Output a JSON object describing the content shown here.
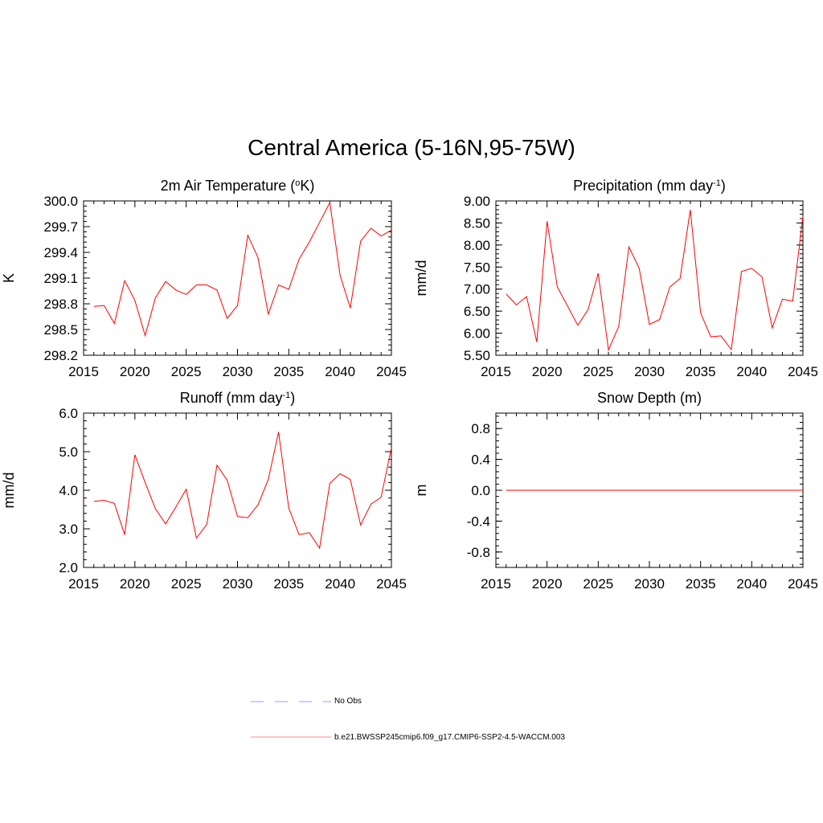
{
  "title": "Central America (5-16N,95-75W)",
  "colors": {
    "model": "#ff0000",
    "obs": "#9999ff",
    "axis": "#000000"
  },
  "legend": {
    "obs_label": "No Obs",
    "model_label": "b.e21.BWSSP245cmip6.f09_g17.CMIP6-SSP2-4.5-WACCM.003"
  },
  "chart_data": [
    {
      "id": "temperature",
      "type": "line",
      "title": "2m Air Temperature (",
      "title_sup": "o",
      "title_after": "K)",
      "ylabel": "K",
      "xlim": [
        2015,
        2045
      ],
      "ylim": [
        298.2,
        300.0
      ],
      "xticks": [
        "2015",
        "2020",
        "2025",
        "2030",
        "2035",
        "2040",
        "2045"
      ],
      "yticks": [
        "298.2",
        "298.5",
        "298.8",
        "299.1",
        "299.4",
        "299.7",
        "300.0"
      ],
      "x": [
        2016,
        2017,
        2018,
        2019,
        2020,
        2021,
        2022,
        2023,
        2024,
        2025,
        2026,
        2027,
        2028,
        2029,
        2030,
        2031,
        2032,
        2033,
        2034,
        2035,
        2036,
        2037,
        2038,
        2039,
        2040,
        2041,
        2042,
        2043,
        2044,
        2045
      ],
      "values": [
        298.77,
        298.78,
        298.57,
        299.07,
        298.84,
        298.43,
        298.87,
        299.06,
        298.96,
        298.91,
        299.02,
        299.02,
        298.96,
        298.63,
        298.78,
        299.6,
        299.34,
        298.68,
        299.02,
        298.97,
        299.32,
        299.52,
        299.75,
        299.98,
        299.13,
        298.75,
        299.53,
        299.68,
        299.59,
        299.66
      ]
    },
    {
      "id": "precipitation",
      "type": "line",
      "title": "Precipitation (mm day",
      "title_sup": "-1",
      "title_after": ")",
      "ylabel": "mm/d",
      "xlim": [
        2015,
        2045
      ],
      "ylim": [
        5.5,
        9.0
      ],
      "xticks": [
        "2015",
        "2020",
        "2025",
        "2030",
        "2035",
        "2040",
        "2045"
      ],
      "yticks": [
        "5.50",
        "6.00",
        "6.50",
        "7.00",
        "7.50",
        "8.00",
        "8.50",
        "9.00"
      ],
      "x": [
        2016,
        2017,
        2018,
        2019,
        2020,
        2021,
        2022,
        2023,
        2024,
        2025,
        2026,
        2027,
        2028,
        2029,
        2030,
        2031,
        2032,
        2033,
        2034,
        2035,
        2036,
        2037,
        2038,
        2039,
        2040,
        2041,
        2042,
        2043,
        2044,
        2045
      ],
      "values": [
        6.89,
        6.64,
        6.83,
        5.8,
        8.54,
        7.05,
        6.62,
        6.18,
        6.53,
        7.36,
        5.62,
        6.15,
        7.96,
        7.47,
        6.2,
        6.31,
        7.05,
        7.24,
        8.8,
        6.46,
        5.92,
        5.94,
        5.63,
        7.4,
        7.47,
        7.28,
        6.12,
        6.77,
        6.73,
        8.65
      ]
    },
    {
      "id": "runoff",
      "type": "line",
      "title": "Runoff (mm day",
      "title_sup": "-1",
      "title_after": ")",
      "ylabel": "mm/d",
      "xlim": [
        2015,
        2045
      ],
      "ylim": [
        2.0,
        6.0
      ],
      "xticks": [
        "2015",
        "2020",
        "2025",
        "2030",
        "2035",
        "2040",
        "2045"
      ],
      "yticks": [
        "2.0",
        "3.0",
        "4.0",
        "5.0",
        "6.0"
      ],
      "x": [
        2016,
        2017,
        2018,
        2019,
        2020,
        2021,
        2022,
        2023,
        2024,
        2025,
        2026,
        2027,
        2028,
        2029,
        2030,
        2031,
        2032,
        2033,
        2034,
        2035,
        2036,
        2037,
        2038,
        2039,
        2040,
        2041,
        2042,
        2043,
        2044,
        2045
      ],
      "values": [
        3.71,
        3.74,
        3.66,
        2.85,
        4.92,
        4.2,
        3.52,
        3.13,
        3.57,
        4.03,
        2.76,
        3.11,
        4.65,
        4.26,
        3.32,
        3.29,
        3.62,
        4.28,
        5.51,
        3.54,
        2.85,
        2.9,
        2.5,
        4.18,
        4.43,
        4.28,
        3.1,
        3.64,
        3.82,
        5.1
      ]
    },
    {
      "id": "snow",
      "type": "line",
      "title": "Snow Depth (m)",
      "title_sup": "",
      "title_after": "",
      "ylabel": "m",
      "xlim": [
        2015,
        2045
      ],
      "ylim": [
        -1.0,
        1.0
      ],
      "xticks": [
        "2015",
        "2020",
        "2025",
        "2030",
        "2035",
        "2040",
        "2045"
      ],
      "yticks": [
        "-0.8",
        "-0.4",
        "0.0",
        "0.4",
        "0.8"
      ],
      "ytick_values": [
        -0.8,
        -0.4,
        0.0,
        0.4,
        0.8
      ],
      "x": [
        2016,
        2017,
        2018,
        2019,
        2020,
        2021,
        2022,
        2023,
        2024,
        2025,
        2026,
        2027,
        2028,
        2029,
        2030,
        2031,
        2032,
        2033,
        2034,
        2035,
        2036,
        2037,
        2038,
        2039,
        2040,
        2041,
        2042,
        2043,
        2044,
        2045
      ],
      "values": [
        0,
        0,
        0,
        0,
        0,
        0,
        0,
        0,
        0,
        0,
        0,
        0,
        0,
        0,
        0,
        0,
        0,
        0,
        0,
        0,
        0,
        0,
        0,
        0,
        0,
        0,
        0,
        0,
        0,
        0
      ]
    }
  ]
}
